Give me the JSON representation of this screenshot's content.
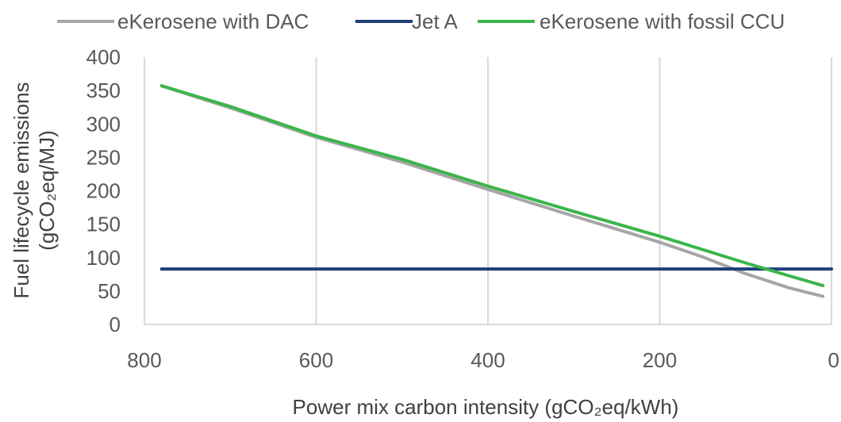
{
  "chart_data": {
    "type": "line",
    "xlabel": "Power mix carbon intensity (gCO₂eq/kWh)",
    "ylabel_line1": "Fuel lifecycle emissions",
    "ylabel_line2": "(gCO₂eq/MJ)",
    "xlim": [
      800,
      0
    ],
    "x_reversed": true,
    "ylim": [
      0,
      400
    ],
    "x_ticks": [
      800,
      600,
      400,
      200,
      0
    ],
    "y_ticks": [
      0,
      50,
      100,
      150,
      200,
      250,
      300,
      350,
      400
    ],
    "grid": "vertical",
    "legend_position": "top",
    "series": [
      {
        "name": "eKerosene with DAC",
        "color": "#a6a6a6",
        "points": [
          [
            780,
            357
          ],
          [
            700,
            324
          ],
          [
            600,
            280
          ],
          [
            500,
            243
          ],
          [
            400,
            202
          ],
          [
            300,
            162
          ],
          [
            200,
            123
          ],
          [
            150,
            101
          ],
          [
            100,
            76
          ],
          [
            50,
            55
          ],
          [
            10,
            42
          ]
        ]
      },
      {
        "name": "Jet A",
        "color": "#1f3f7a",
        "points": [
          [
            780,
            83
          ],
          [
            0,
            83
          ]
        ]
      },
      {
        "name": "eKerosene with fossil CCU",
        "color": "#3cb54a",
        "points": [
          [
            780,
            357
          ],
          [
            700,
            326
          ],
          [
            600,
            282
          ],
          [
            500,
            247
          ],
          [
            400,
            207
          ],
          [
            300,
            169
          ],
          [
            200,
            132
          ],
          [
            150,
            112
          ],
          [
            100,
            92
          ],
          [
            50,
            73
          ],
          [
            10,
            58
          ]
        ]
      }
    ]
  }
}
